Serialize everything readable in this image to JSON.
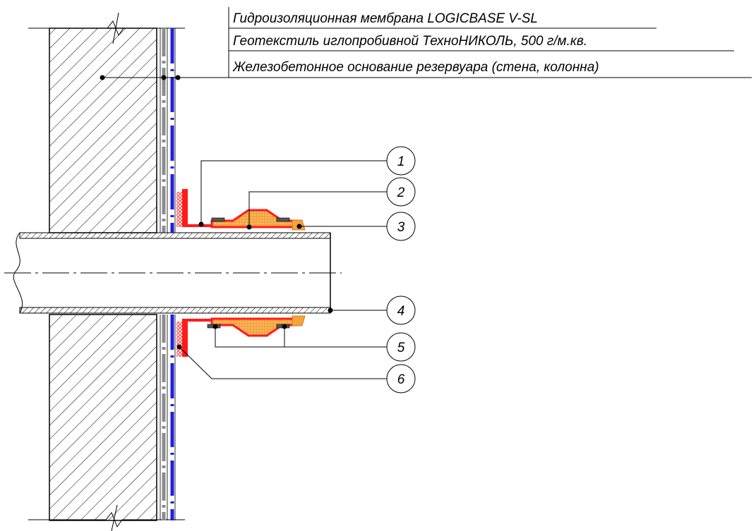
{
  "layer_labels": [
    "Гидроизоляционная мембрана LOGICBASE V-SL",
    "Геотекстиль иглопробивной ТехноНИКОЛЬ, 500 г/м.кв.",
    "Железобетонное основание резервуара (стена, колонна)"
  ],
  "callouts": [
    "1",
    "2",
    "3",
    "4",
    "5",
    "6"
  ],
  "colors": {
    "membrane": "#1f1fe6",
    "geotextile": "#8c8c8c",
    "seal_red": "#ff1a1a",
    "filler_orange": "#f5a33c",
    "hatch": "#000000"
  }
}
